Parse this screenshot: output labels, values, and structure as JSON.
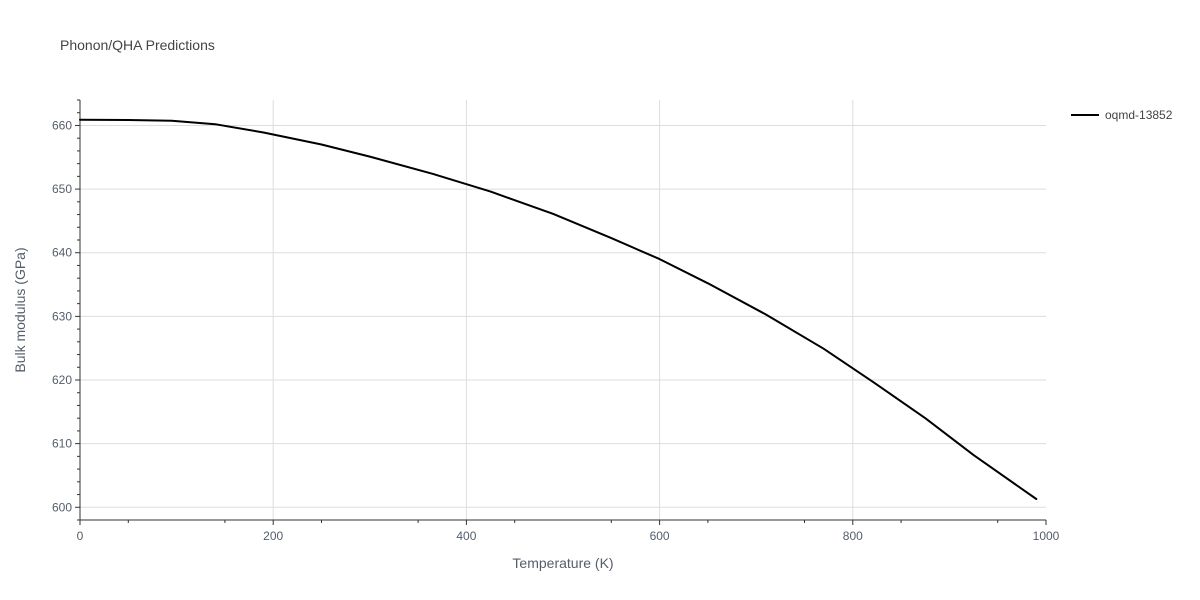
{
  "chart_data": {
    "type": "line",
    "title": "Phonon/QHA Predictions",
    "xlabel": "Temperature (K)",
    "ylabel": "Bulk modulus (GPa)",
    "xlim": [
      0,
      1000
    ],
    "ylim": [
      598,
      664
    ],
    "x_ticks": [
      0,
      200,
      400,
      600,
      800,
      1000
    ],
    "y_ticks": [
      600,
      610,
      620,
      630,
      640,
      650,
      660
    ],
    "x_tick_labels": [
      "0",
      "200",
      "400",
      "600",
      "800",
      "1000"
    ],
    "y_tick_labels": [
      "600",
      "610",
      "620",
      "630",
      "640",
      "650",
      "660"
    ],
    "grid": true,
    "legend_position": "top-right",
    "series": [
      {
        "name": "oqmd-13852",
        "color": "#000000",
        "x": [
          0,
          50,
          95,
          140,
          190,
          250,
          300,
          365,
          425,
          490,
          550,
          600,
          650,
          710,
          770,
          820,
          875,
          925,
          990
        ],
        "y": [
          660.9,
          660.85,
          660.75,
          660.2,
          658.9,
          657.0,
          655.1,
          652.4,
          649.6,
          646.1,
          642.3,
          639.0,
          635.2,
          630.3,
          624.9,
          619.8,
          614.0,
          608.2,
          601.3
        ]
      }
    ]
  }
}
